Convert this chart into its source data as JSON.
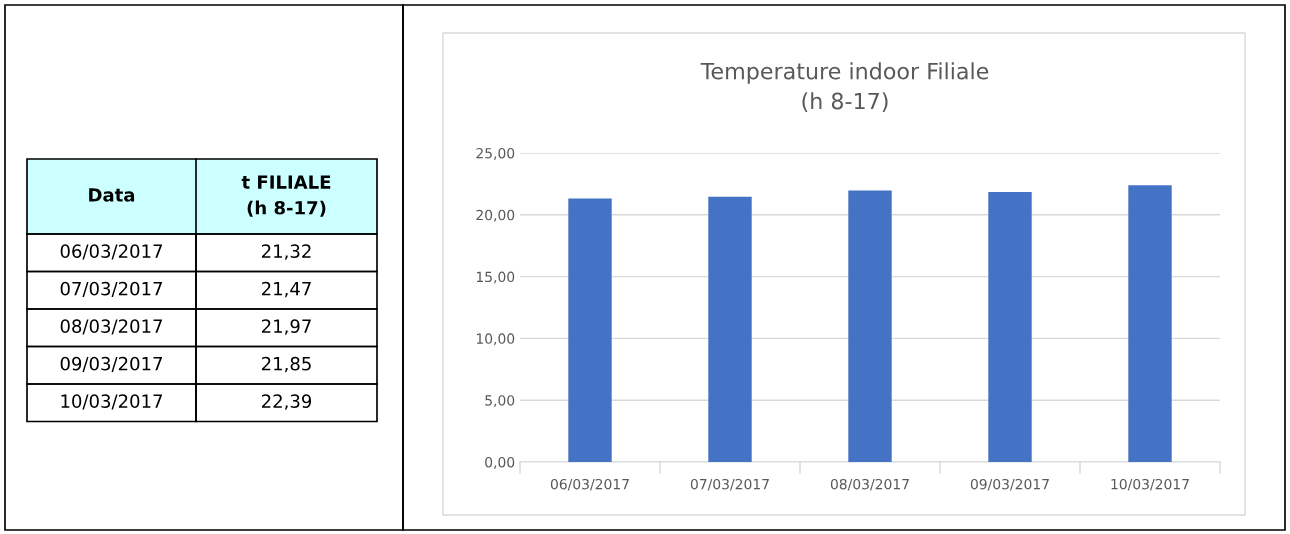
{
  "chart_data": [
    {
      "type": "other",
      "annotations": [
        "Data",
        "t FILIALE\n(h 8-17)"
      ],
      "categories": [
        "06/03/2017",
        "07/03/2017",
        "08/03/2017",
        "09/03/2017",
        "10/03/2017"
      ],
      "values": [
        21.32,
        21.47,
        21.97,
        21.85,
        22.39
      ],
      "value_labels": [
        "21,32",
        "21,47",
        "21,97",
        "21,85",
        "22,39"
      ]
    },
    {
      "type": "bar",
      "title": "Temperature indoor Filiale\n(h 8-17)",
      "categories": [
        "06/03/2017",
        "07/03/2017",
        "08/03/2017",
        "09/03/2017",
        "10/03/2017"
      ],
      "values": [
        21.32,
        21.47,
        21.97,
        21.85,
        22.39
      ],
      "color": "#4472c4",
      "ylim": [
        0,
        25
      ],
      "yticks": [
        {
          "value": 0,
          "label": "0,00"
        },
        {
          "value": 5,
          "label": "5,00"
        },
        {
          "value": 10,
          "label": "10,00"
        },
        {
          "value": 15,
          "label": "15,00"
        },
        {
          "value": 20,
          "label": "20,00"
        },
        {
          "value": 25,
          "label": "25,00"
        }
      ],
      "grid": "y"
    }
  ]
}
